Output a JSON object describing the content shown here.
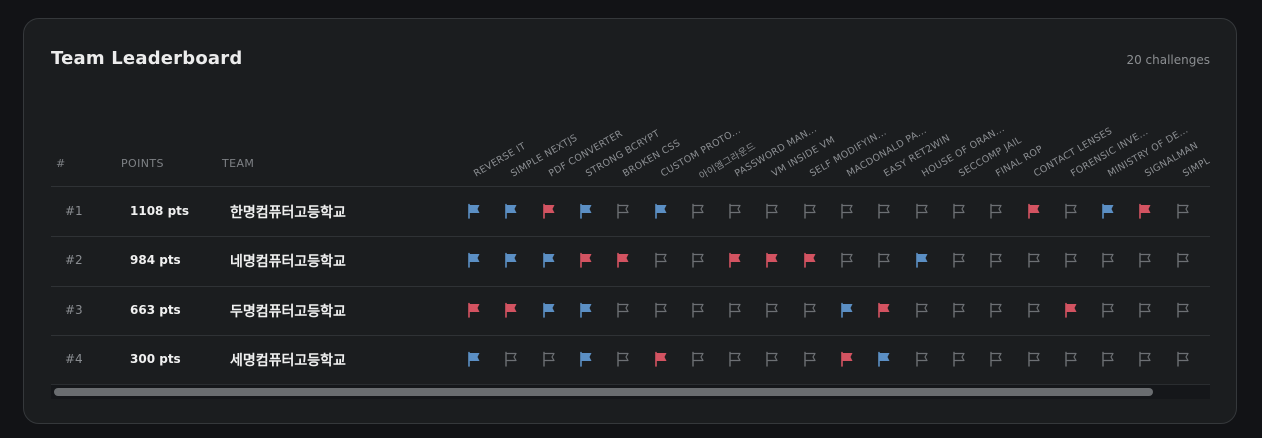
{
  "header": {
    "title": "Team Leaderboard",
    "challenge_count": "20 challenges"
  },
  "columns": {
    "rank": "#",
    "points": "POINTS",
    "team": "TEAM"
  },
  "challenges": [
    "REVERSE IT",
    "SIMPLE NEXTJS",
    "PDF CONVERTER",
    "STRONG BCRYPT",
    "BROKEN CSS",
    "CUSTOM PROTO...",
    "아이엠그라운드",
    "PASSWORD MAN...",
    "VM INSIDE VM",
    "SELF MODIFYIN...",
    "MACDONALD PA...",
    "EASY RET2WIN",
    "HOUSE OF ORAN...",
    "SECCOMP JAIL",
    "FINAL ROP",
    "CONTACT LENSES",
    "FORENSIC INVE...",
    "MINISTRY OF DE...",
    "SIGNALMAN",
    "SIMPL..."
  ],
  "colors": {
    "blue_flag": "#5b8fc4",
    "red_flag": "#d35361",
    "empty_flag": "#6d7074"
  },
  "icons": {
    "solved_first": "blue-flag-icon",
    "solved": "red-flag-icon",
    "unsolved": "empty-flag-icon"
  },
  "rows": [
    {
      "rank": "#1",
      "points": "1108 pts",
      "team": "한명컴퓨터고등학교",
      "status": [
        "b",
        "b",
        "r",
        "b",
        "e",
        "b",
        "e",
        "e",
        "e",
        "e",
        "e",
        "e",
        "e",
        "e",
        "e",
        "r",
        "e",
        "b",
        "r",
        "e"
      ]
    },
    {
      "rank": "#2",
      "points": "984 pts",
      "team": "네명컴퓨터고등학교",
      "status": [
        "b",
        "b",
        "b",
        "r",
        "r",
        "e",
        "e",
        "r",
        "r",
        "r",
        "e",
        "e",
        "b",
        "e",
        "e",
        "e",
        "e",
        "e",
        "e",
        "e"
      ]
    },
    {
      "rank": "#3",
      "points": "663 pts",
      "team": "두명컴퓨터고등학교",
      "status": [
        "r",
        "r",
        "b",
        "b",
        "e",
        "e",
        "e",
        "e",
        "e",
        "e",
        "b",
        "r",
        "e",
        "e",
        "e",
        "e",
        "r",
        "e",
        "e",
        "e"
      ]
    },
    {
      "rank": "#4",
      "points": "300 pts",
      "team": "세명컴퓨터고등학교",
      "status": [
        "b",
        "e",
        "e",
        "b",
        "e",
        "r",
        "e",
        "e",
        "e",
        "e",
        "r",
        "b",
        "e",
        "e",
        "e",
        "e",
        "e",
        "e",
        "e",
        "e"
      ]
    }
  ]
}
